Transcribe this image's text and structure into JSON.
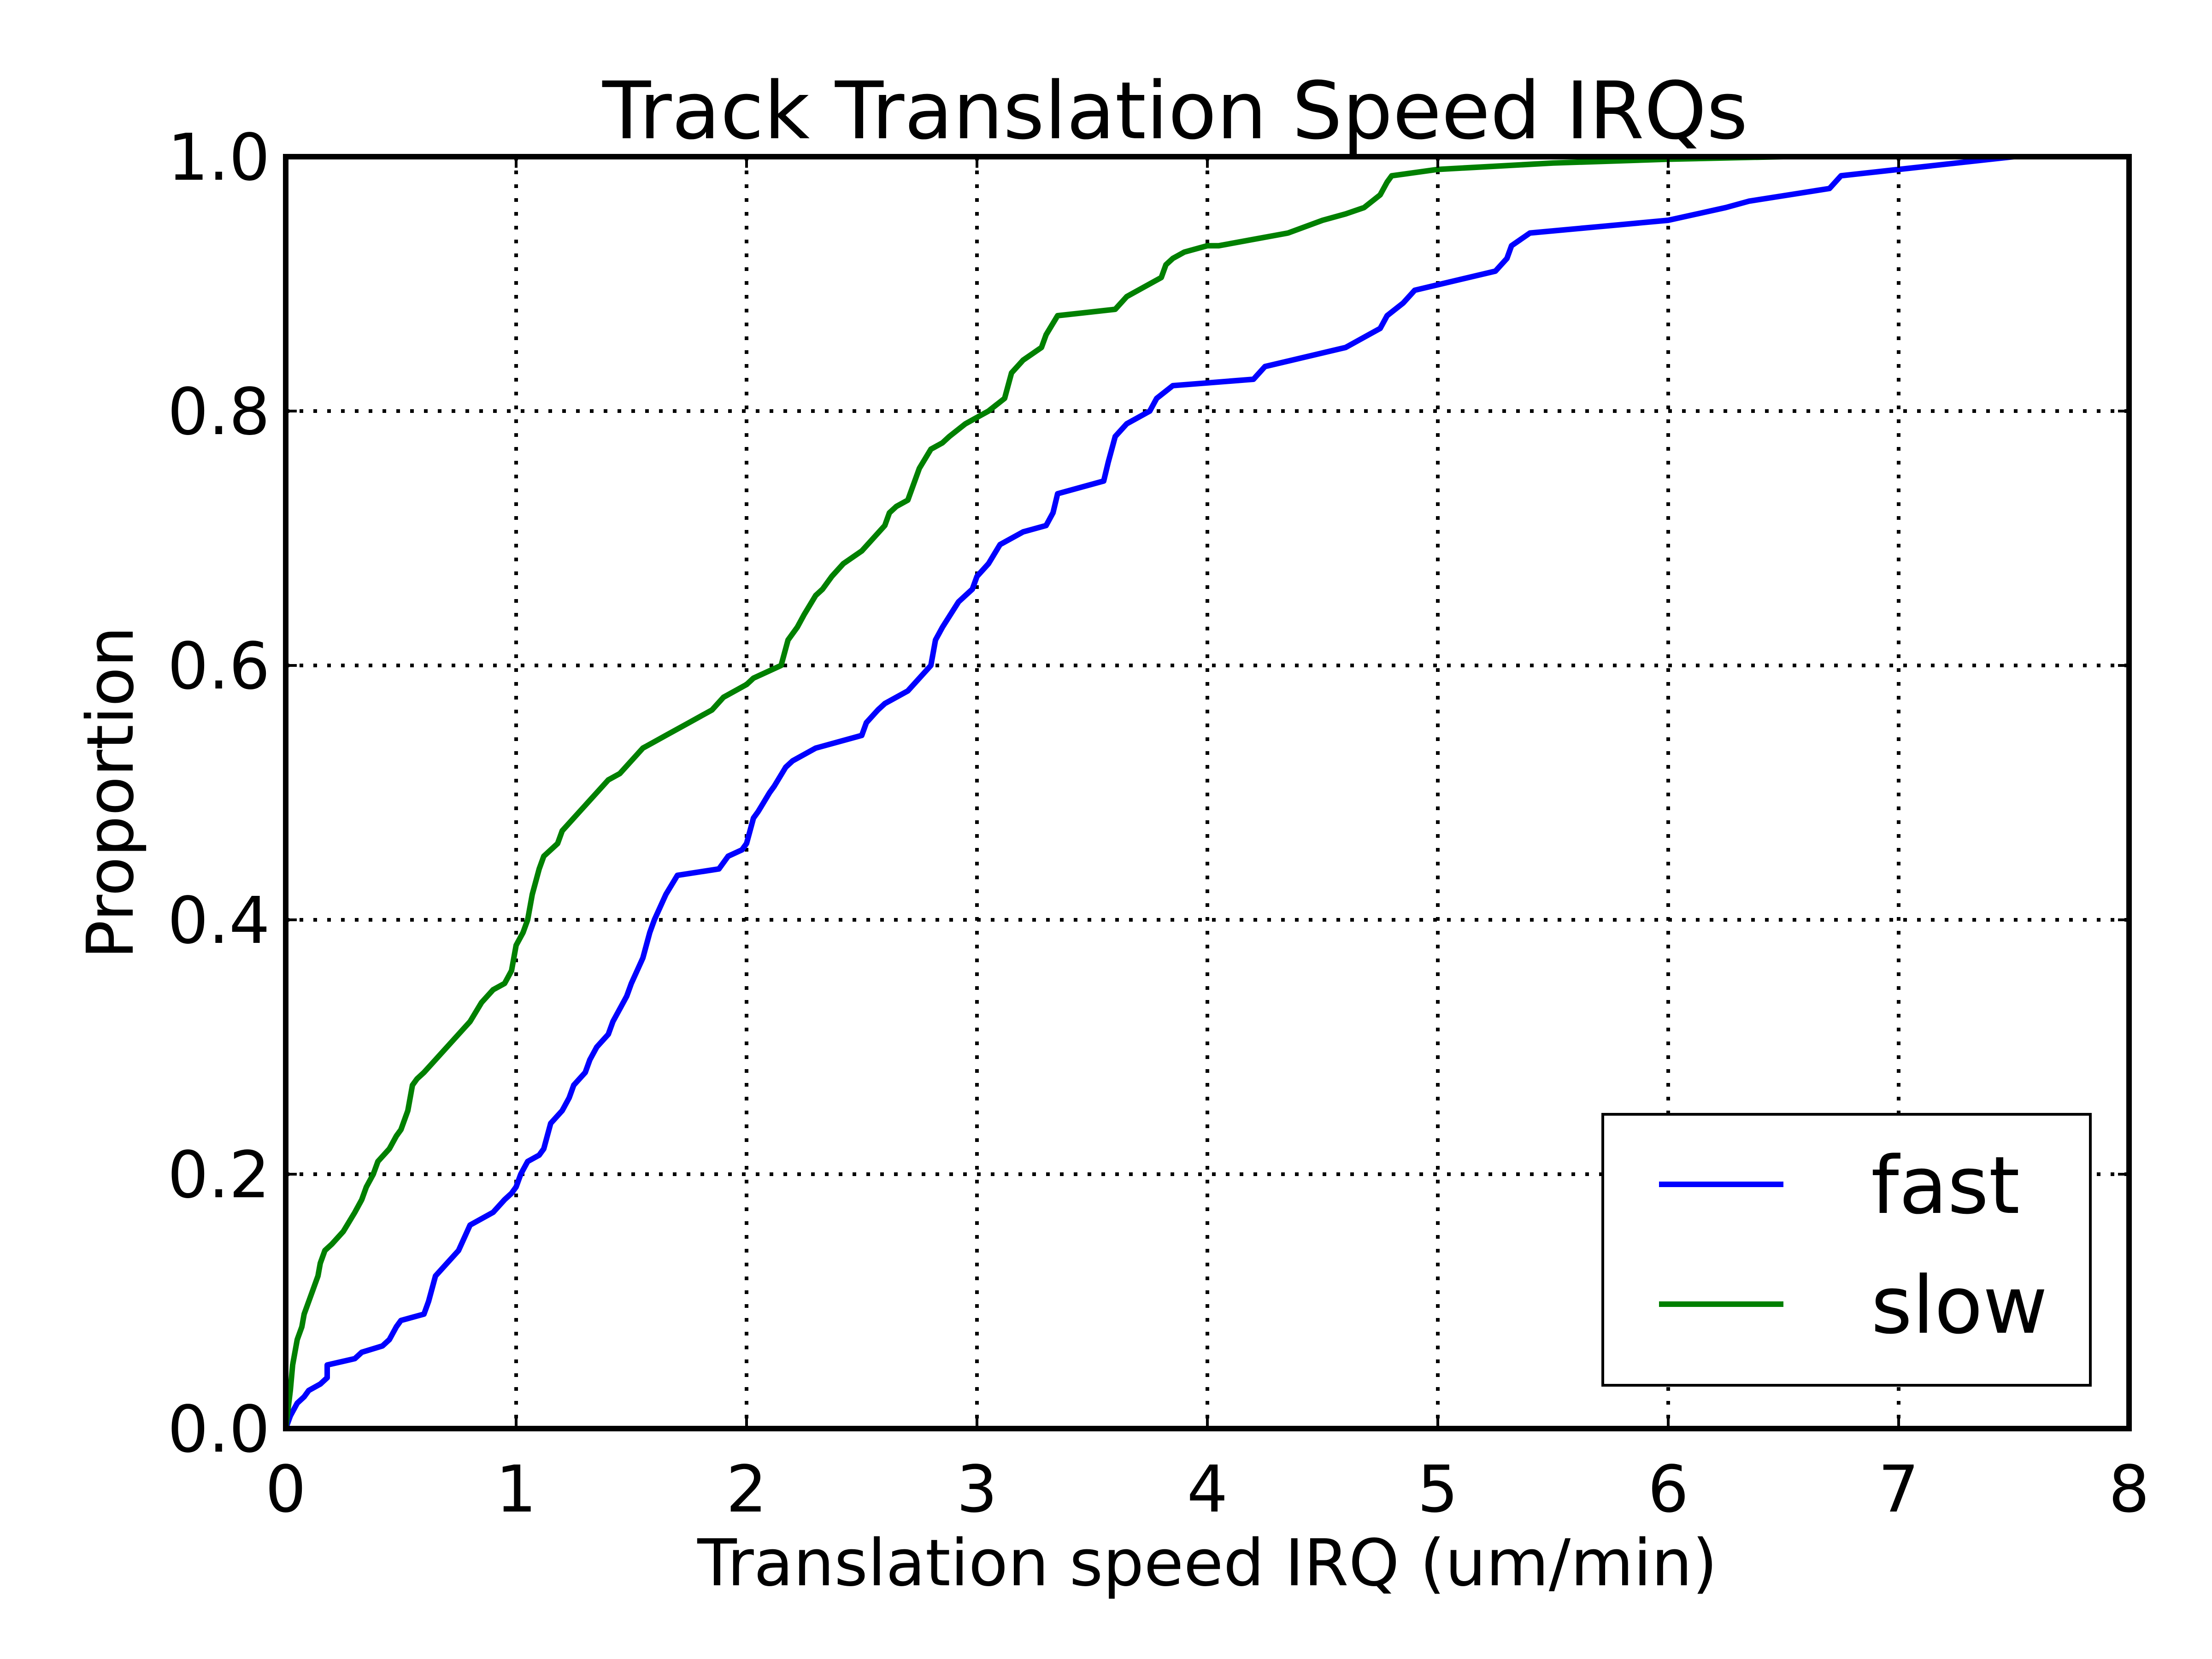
{
  "chart_data": {
    "type": "line",
    "title": "Track Translation Speed IRQs",
    "xlabel": "Translation speed IRQ (um/min)",
    "ylabel": "Proportion",
    "xlim": [
      0,
      8
    ],
    "ylim": [
      0.0,
      1.0
    ],
    "xticks": [
      "0",
      "1",
      "2",
      "3",
      "4",
      "5",
      "6",
      "7",
      "8"
    ],
    "yticks": [
      "0.0",
      "0.2",
      "0.4",
      "0.6",
      "0.8",
      "1.0"
    ],
    "grid": true,
    "legend": {
      "placement": "lower-right",
      "entries": [
        "fast",
        "slow"
      ]
    },
    "series": [
      {
        "name": "fast",
        "color": "#0000ff",
        "x": [
          0.0,
          0.02,
          0.05,
          0.08,
          0.1,
          0.15,
          0.18,
          0.18,
          0.3,
          0.33,
          0.42,
          0.45,
          0.48,
          0.5,
          0.6,
          0.62,
          0.65,
          0.7,
          0.75,
          0.8,
          0.9,
          0.95,
          0.98,
          1.0,
          1.02,
          1.05,
          1.1,
          1.12,
          1.15,
          1.2,
          1.23,
          1.25,
          1.3,
          1.32,
          1.35,
          1.4,
          1.42,
          1.45,
          1.48,
          1.5,
          1.55,
          1.58,
          1.6,
          1.65,
          1.7,
          1.88,
          1.92,
          1.98,
          2.0,
          2.03,
          2.05,
          2.1,
          2.12,
          2.17,
          2.2,
          2.3,
          2.5,
          2.52,
          2.57,
          2.6,
          2.65,
          2.7,
          2.8,
          2.82,
          2.85,
          2.92,
          2.95,
          2.98,
          3.0,
          3.05,
          3.1,
          3.15,
          3.2,
          3.3,
          3.33,
          3.35,
          3.55,
          3.57,
          3.6,
          3.65,
          3.75,
          3.78,
          3.85,
          4.2,
          4.25,
          4.6,
          4.7,
          4.75,
          4.78,
          4.85,
          4.9,
          5.25,
          5.3,
          5.32,
          5.4,
          5.7,
          6.0,
          6.25,
          6.35,
          6.7,
          6.75,
          7.0,
          7.5
        ],
        "y": [
          0.0,
          0.01,
          0.02,
          0.025,
          0.03,
          0.035,
          0.04,
          0.05,
          0.055,
          0.06,
          0.065,
          0.07,
          0.08,
          0.085,
          0.09,
          0.1,
          0.12,
          0.13,
          0.14,
          0.16,
          0.17,
          0.18,
          0.185,
          0.19,
          0.2,
          0.21,
          0.215,
          0.22,
          0.24,
          0.25,
          0.26,
          0.27,
          0.28,
          0.29,
          0.3,
          0.31,
          0.32,
          0.33,
          0.34,
          0.35,
          0.37,
          0.39,
          0.4,
          0.42,
          0.435,
          0.44,
          0.45,
          0.455,
          0.46,
          0.48,
          0.485,
          0.5,
          0.505,
          0.52,
          0.525,
          0.535,
          0.545,
          0.555,
          0.565,
          0.57,
          0.575,
          0.58,
          0.6,
          0.62,
          0.63,
          0.65,
          0.655,
          0.66,
          0.67,
          0.68,
          0.695,
          0.7,
          0.705,
          0.71,
          0.72,
          0.735,
          0.745,
          0.76,
          0.78,
          0.79,
          0.8,
          0.81,
          0.82,
          0.825,
          0.835,
          0.85,
          0.86,
          0.865,
          0.875,
          0.885,
          0.895,
          0.91,
          0.92,
          0.93,
          0.94,
          0.945,
          0.95,
          0.96,
          0.965,
          0.975,
          0.985,
          0.99,
          1.0
        ]
      },
      {
        "name": "slow",
        "color": "#008000",
        "x": [
          0.0,
          0.02,
          0.03,
          0.05,
          0.07,
          0.08,
          0.1,
          0.12,
          0.14,
          0.15,
          0.17,
          0.2,
          0.25,
          0.3,
          0.33,
          0.35,
          0.38,
          0.4,
          0.45,
          0.48,
          0.5,
          0.53,
          0.55,
          0.57,
          0.6,
          0.65,
          0.7,
          0.75,
          0.8,
          0.85,
          0.9,
          0.95,
          0.98,
          1.0,
          1.03,
          1.05,
          1.07,
          1.1,
          1.12,
          1.15,
          1.18,
          1.2,
          1.25,
          1.3,
          1.35,
          1.4,
          1.45,
          1.5,
          1.55,
          1.6,
          1.65,
          1.75,
          1.85,
          1.9,
          2.0,
          2.03,
          2.15,
          2.18,
          2.22,
          2.25,
          2.3,
          2.33,
          2.37,
          2.42,
          2.5,
          2.55,
          2.6,
          2.62,
          2.65,
          2.7,
          2.72,
          2.75,
          2.8,
          2.85,
          2.88,
          2.95,
          3.0,
          3.05,
          3.12,
          3.15,
          3.2,
          3.28,
          3.3,
          3.35,
          3.6,
          3.65,
          3.75,
          3.8,
          3.82,
          3.85,
          3.9,
          4.0,
          4.05,
          4.35,
          4.5,
          4.6,
          4.68,
          4.75,
          4.78,
          4.8,
          5.0,
          5.5,
          6.0,
          6.5,
          6.6
        ],
        "y": [
          0.0,
          0.03,
          0.05,
          0.07,
          0.08,
          0.09,
          0.1,
          0.11,
          0.12,
          0.13,
          0.14,
          0.145,
          0.155,
          0.17,
          0.18,
          0.19,
          0.2,
          0.21,
          0.22,
          0.23,
          0.235,
          0.25,
          0.27,
          0.275,
          0.28,
          0.29,
          0.3,
          0.31,
          0.32,
          0.335,
          0.345,
          0.35,
          0.36,
          0.38,
          0.39,
          0.4,
          0.42,
          0.44,
          0.45,
          0.455,
          0.46,
          0.47,
          0.48,
          0.49,
          0.5,
          0.51,
          0.515,
          0.525,
          0.535,
          0.54,
          0.545,
          0.555,
          0.565,
          0.575,
          0.585,
          0.59,
          0.6,
          0.62,
          0.63,
          0.64,
          0.655,
          0.66,
          0.67,
          0.68,
          0.69,
          0.7,
          0.71,
          0.72,
          0.725,
          0.73,
          0.74,
          0.755,
          0.77,
          0.775,
          0.78,
          0.79,
          0.795,
          0.8,
          0.81,
          0.83,
          0.84,
          0.85,
          0.86,
          0.875,
          0.88,
          0.89,
          0.9,
          0.905,
          0.915,
          0.92,
          0.925,
          0.93,
          0.93,
          0.94,
          0.95,
          0.955,
          0.96,
          0.97,
          0.98,
          0.985,
          0.99,
          0.995,
          0.998,
          1.0,
          1.0
        ]
      }
    ]
  }
}
